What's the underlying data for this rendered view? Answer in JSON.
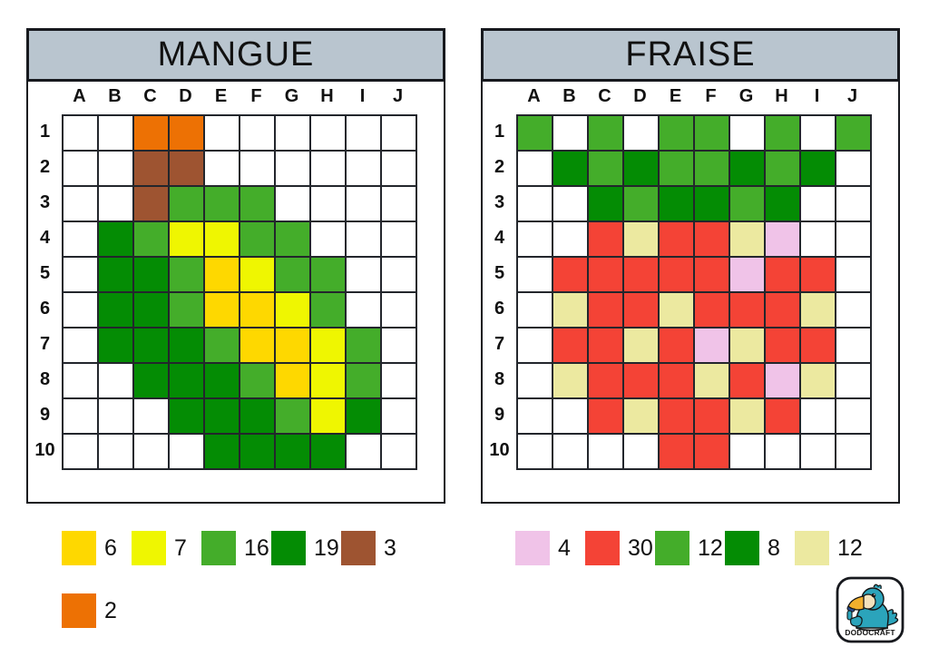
{
  "panels": [
    {
      "title": "MANGUE",
      "columns": [
        "A",
        "B",
        "C",
        "D",
        "E",
        "F",
        "G",
        "H",
        "I",
        "J"
      ],
      "row_labels": [
        "1",
        "2",
        "3",
        "4",
        "5",
        "6",
        "7",
        "8",
        "9",
        "10"
      ],
      "palette": {
        "O": {
          "name": "orange",
          "hex": "#ed7104"
        },
        "B": {
          "name": "brown",
          "hex": "#9e5431"
        },
        "M": {
          "name": "green",
          "hex": "#44ad2a"
        },
        "D": {
          "name": "dark-green",
          "hex": "#048c04"
        },
        "Y": {
          "name": "yellow",
          "hex": "#eff601"
        },
        "G": {
          "name": "gold",
          "hex": "#fed800"
        }
      },
      "cells": [
        "..OO......",
        "..BB......",
        "..BMMM....",
        ".DMYYMM...",
        ".DDMGYMM..",
        ".DDMGGYM..",
        ".DDDMGGYM.",
        "..DDDMGYM.",
        "...DDDMYD.",
        "....DDDD.."
      ],
      "legend": [
        {
          "color": "gold",
          "hex": "#fed800",
          "count": "6"
        },
        {
          "color": "yellow",
          "hex": "#eff601",
          "count": "7"
        },
        {
          "color": "green",
          "hex": "#44ad2a",
          "count": "16"
        },
        {
          "color": "dark-green",
          "hex": "#048c04",
          "count": "19"
        },
        {
          "color": "brown",
          "hex": "#9e5431",
          "count": "3"
        },
        {
          "color": "orange",
          "hex": "#ed7104",
          "count": "2"
        }
      ]
    },
    {
      "title": "FRAISE",
      "columns": [
        "A",
        "B",
        "C",
        "D",
        "E",
        "F",
        "G",
        "H",
        "I",
        "J"
      ],
      "row_labels": [
        "1",
        "2",
        "3",
        "4",
        "5",
        "6",
        "7",
        "8",
        "9",
        "10"
      ],
      "palette": {
        "P": {
          "name": "pink",
          "hex": "#f0c3e8"
        },
        "R": {
          "name": "red",
          "hex": "#f44336"
        },
        "M": {
          "name": "green",
          "hex": "#44ad2a"
        },
        "D": {
          "name": "dark-green",
          "hex": "#048c04"
        },
        "C": {
          "name": "cream",
          "hex": "#ece9a0"
        }
      },
      "cells": [
        "M.M.MM.M.M",
        ".DMDMMDMD.",
        "..DMDDMD..",
        "..RCRRCP..",
        ".RRRRRPRR.",
        ".CRRCRRRC.",
        ".RRCRPCRR.",
        ".CRRRCRPC.",
        "..RCRRCR..",
        "....RR...."
      ],
      "legend": [
        {
          "color": "pink",
          "hex": "#f0c3e8",
          "count": "4"
        },
        {
          "color": "red",
          "hex": "#f44336",
          "count": "30"
        },
        {
          "color": "green",
          "hex": "#44ad2a",
          "count": "12"
        },
        {
          "color": "dark-green",
          "hex": "#048c04",
          "count": "8"
        },
        {
          "color": "cream",
          "hex": "#ece9a0",
          "count": "12"
        }
      ]
    }
  ],
  "logo": {
    "brand": "DODOCRAFT"
  },
  "colors": {
    "header_bg": "#b9c5cf",
    "grid_line": "#23262c",
    "panel_border": "#17191e",
    "cell_empty": "#ffffff"
  }
}
